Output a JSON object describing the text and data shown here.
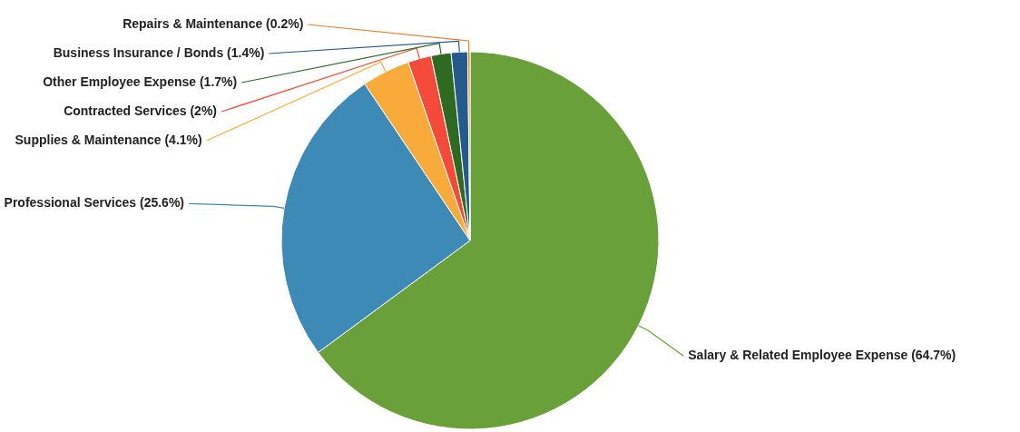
{
  "chart_data": {
    "type": "pie",
    "categories": [
      "Salary & Related Employee Expense",
      "Professional Services",
      "Supplies & Maintenance",
      "Contracted Services",
      "Other Employee Expense",
      "Business Insurance / Bonds",
      "Repairs & Maintenance"
    ],
    "values": [
      64.7,
      25.6,
      4.1,
      2,
      1.7,
      1.4,
      0.2
    ],
    "value_labels": [
      "(64.7%)",
      "(25.6%)",
      "(4.1%)",
      "(2%)",
      "(1.7%)",
      "(1.4%)",
      "(0.2%)"
    ],
    "colors": [
      "#6aa03a",
      "#3d8ab6",
      "#f8aa3a",
      "#f34a3a",
      "#2f6a22",
      "#255a8c",
      "#e97f2c"
    ]
  }
}
